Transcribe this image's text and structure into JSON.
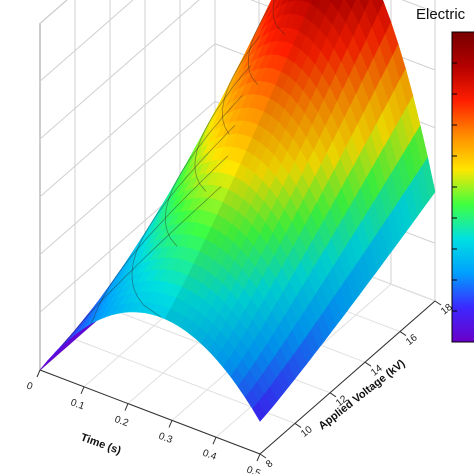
{
  "chart_data": {
    "type": "surface3d",
    "title": "",
    "colorbar_title": "Electric",
    "x_axis": {
      "label": "Time (s)",
      "ticks": [
        "0",
        "0.1",
        "0.2",
        "0.3",
        "0.4",
        "0.5"
      ],
      "range": [
        0,
        0.5
      ]
    },
    "y_axis": {
      "label": "Applied Voltage (kV)",
      "ticks": [
        "8",
        "10",
        "12",
        "14",
        "16",
        "18"
      ],
      "range": [
        8,
        18
      ]
    },
    "z_axis": {
      "label": "",
      "ticks": []
    },
    "surface_shape": "ridge rising with applied voltage, peaked at middle time",
    "colormap": [
      "#6a00c9",
      "#3c28ff",
      "#00a0ff",
      "#00e0e0",
      "#40ff40",
      "#ffe600",
      "#ff8c00",
      "#ff1e00",
      "#b40000",
      "#780000"
    ],
    "grid": true,
    "colorbar_position": "right"
  }
}
